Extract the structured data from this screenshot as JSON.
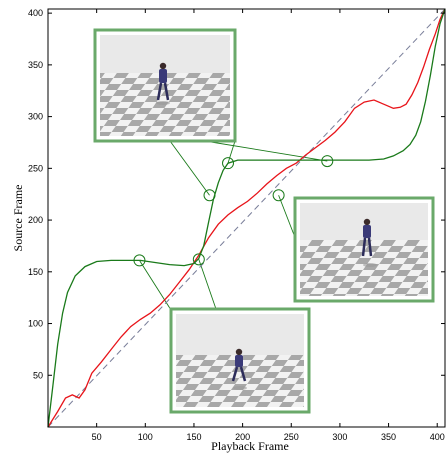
{
  "chart_data": {
    "type": "line",
    "title": "",
    "xlabel": "Playback Frame",
    "ylabel": "Source Frame",
    "xlim": [
      0,
      408
    ],
    "ylim": [
      0,
      404
    ],
    "x_ticks": [
      50,
      100,
      150,
      200,
      250,
      300,
      350,
      400
    ],
    "y_ticks": [
      50,
      100,
      150,
      200,
      250,
      300,
      350,
      400
    ],
    "grid": false,
    "series": [
      {
        "style": "dashed",
        "color": "#7a7f9a",
        "points": [
          [
            0,
            0
          ],
          [
            408,
            404
          ]
        ]
      },
      {
        "style": "solid",
        "color": "#e8141a",
        "points": [
          [
            0,
            0
          ],
          [
            10,
            15
          ],
          [
            18,
            28
          ],
          [
            25,
            31
          ],
          [
            32,
            28
          ],
          [
            38,
            36
          ],
          [
            45,
            52
          ],
          [
            55,
            63
          ],
          [
            65,
            75
          ],
          [
            75,
            87
          ],
          [
            85,
            97
          ],
          [
            95,
            104
          ],
          [
            105,
            110
          ],
          [
            115,
            118
          ],
          [
            125,
            128
          ],
          [
            135,
            140
          ],
          [
            145,
            152
          ],
          [
            155,
            166
          ],
          [
            165,
            183
          ],
          [
            175,
            196
          ],
          [
            185,
            205
          ],
          [
            195,
            212
          ],
          [
            205,
            218
          ],
          [
            215,
            226
          ],
          [
            225,
            235
          ],
          [
            235,
            243
          ],
          [
            245,
            250
          ],
          [
            255,
            255
          ],
          [
            265,
            263
          ],
          [
            275,
            270
          ],
          [
            285,
            277
          ],
          [
            295,
            285
          ],
          [
            305,
            295
          ],
          [
            315,
            308
          ],
          [
            325,
            314
          ],
          [
            335,
            316
          ],
          [
            345,
            312
          ],
          [
            355,
            308
          ],
          [
            362,
            309
          ],
          [
            368,
            312
          ],
          [
            374,
            321
          ],
          [
            380,
            333
          ],
          [
            386,
            348
          ],
          [
            392,
            365
          ],
          [
            398,
            380
          ],
          [
            403,
            394
          ],
          [
            408,
            404
          ]
        ]
      },
      {
        "style": "solid",
        "color": "#1a7a1a",
        "points": [
          [
            0,
            0
          ],
          [
            5,
            40
          ],
          [
            10,
            80
          ],
          [
            15,
            110
          ],
          [
            20,
            130
          ],
          [
            28,
            146
          ],
          [
            38,
            155
          ],
          [
            50,
            160
          ],
          [
            65,
            161
          ],
          [
            80,
            161
          ],
          [
            95,
            161
          ],
          [
            110,
            159
          ],
          [
            125,
            157
          ],
          [
            140,
            156
          ],
          [
            150,
            158
          ],
          [
            155,
            163
          ],
          [
            160,
            175
          ],
          [
            165,
            198
          ],
          [
            170,
            220
          ],
          [
            175,
            236
          ],
          [
            180,
            248
          ],
          [
            185,
            255
          ],
          [
            195,
            258
          ],
          [
            210,
            258
          ],
          [
            230,
            258
          ],
          [
            250,
            258
          ],
          [
            270,
            258
          ],
          [
            290,
            258
          ],
          [
            310,
            258
          ],
          [
            330,
            258
          ],
          [
            345,
            259
          ],
          [
            355,
            262
          ],
          [
            365,
            267
          ],
          [
            372,
            273
          ],
          [
            378,
            282
          ],
          [
            383,
            295
          ],
          [
            388,
            315
          ],
          [
            393,
            340
          ],
          [
            398,
            368
          ],
          [
            403,
            390
          ],
          [
            408,
            404
          ]
        ]
      }
    ]
  },
  "markers": [
    {
      "x": 94,
      "y": 161,
      "circle": true
    },
    {
      "x": 155,
      "y": 162,
      "circle": true
    },
    {
      "x": 166,
      "y": 224,
      "circle": true
    },
    {
      "x": 185,
      "y": 255,
      "circle": true
    },
    {
      "x": 237,
      "y": 224,
      "circle": true
    },
    {
      "x": 287,
      "y": 257,
      "circle": true
    }
  ],
  "colors": {
    "inset_border": "#6aa96a",
    "inset_bg": "#ececec",
    "floor_dark": "#a8a8a8",
    "floor_light": "#f2f2f2",
    "figure": "#2c2c5a",
    "connector": "#1a7a1a"
  }
}
